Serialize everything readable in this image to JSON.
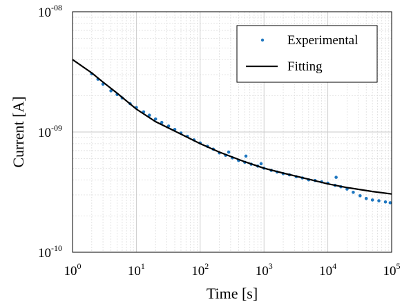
{
  "chart_data": {
    "type": "scatter",
    "title": "",
    "xlabel": "Time [s]",
    "ylabel": "Current [A]",
    "xscale": "log",
    "yscale": "log",
    "xlim": [
      1,
      100000
    ],
    "ylim": [
      1e-10,
      1e-08
    ],
    "grid": true,
    "legend_position": "top-right",
    "x_ticks": [
      {
        "base": "10",
        "exp": "0",
        "value": 1
      },
      {
        "base": "10",
        "exp": "1",
        "value": 10
      },
      {
        "base": "10",
        "exp": "2",
        "value": 100
      },
      {
        "base": "10",
        "exp": "3",
        "value": 1000
      },
      {
        "base": "10",
        "exp": "4",
        "value": 10000
      },
      {
        "base": "10",
        "exp": "5",
        "value": 100000
      }
    ],
    "y_ticks": [
      {
        "base": "10",
        "exp": "-10",
        "value": 1e-10
      },
      {
        "base": "10",
        "exp": "-09",
        "value": 1e-09
      },
      {
        "base": "10",
        "exp": "-08",
        "value": 1e-08
      }
    ],
    "series": [
      {
        "name": "Experimental",
        "kind": "scatter",
        "color": "#1f77c0",
        "points": [
          [
            2.0,
            3.05e-09
          ],
          [
            2.5,
            2.75e-09
          ],
          [
            3.0,
            2.5e-09
          ],
          [
            4.0,
            2.2e-09
          ],
          [
            5.0,
            2.05e-09
          ],
          [
            6.0,
            1.92e-09
          ],
          [
            8.0,
            1.72e-09
          ],
          [
            10,
            1.6e-09
          ],
          [
            13,
            1.47e-09
          ],
          [
            16,
            1.38e-09
          ],
          [
            20,
            1.28e-09
          ],
          [
            25,
            1.2e-09
          ],
          [
            32,
            1.12e-09
          ],
          [
            40,
            1.05e-09
          ],
          [
            50,
            9.8e-10
          ],
          [
            63,
            9.2e-10
          ],
          [
            80,
            8.6e-10
          ],
          [
            100,
            8.1e-10
          ],
          [
            130,
            7.6e-10
          ],
          [
            160,
            7.2e-10
          ],
          [
            200,
            6.7e-10
          ],
          [
            250,
            6.4e-10
          ],
          [
            280,
            6.8e-10
          ],
          [
            320,
            6.1e-10
          ],
          [
            400,
            5.8e-10
          ],
          [
            500,
            5.6e-10
          ],
          [
            520,
            6.3e-10
          ],
          [
            630,
            5.4e-10
          ],
          [
            800,
            5.2e-10
          ],
          [
            900,
            5.45e-10
          ],
          [
            1000,
            5e-10
          ],
          [
            1300,
            4.8e-10
          ],
          [
            1600,
            4.65e-10
          ],
          [
            2000,
            4.5e-10
          ],
          [
            2500,
            4.4e-10
          ],
          [
            3200,
            4.25e-10
          ],
          [
            4000,
            4.15e-10
          ],
          [
            5000,
            4e-10
          ],
          [
            6300,
            3.95e-10
          ],
          [
            8000,
            3.85e-10
          ],
          [
            10000,
            3.75e-10
          ],
          [
            13000,
            3.6e-10
          ],
          [
            13500,
            4.2e-10
          ],
          [
            16000,
            3.5e-10
          ],
          [
            20000,
            3.35e-10
          ],
          [
            25000,
            3.15e-10
          ],
          [
            32000,
            2.95e-10
          ],
          [
            40000,
            2.8e-10
          ],
          [
            50000,
            2.72e-10
          ],
          [
            63000,
            2.68e-10
          ],
          [
            80000,
            2.62e-10
          ],
          [
            95000,
            2.58e-10
          ]
        ]
      },
      {
        "name": "Fitting",
        "kind": "line",
        "color": "#000000",
        "points": [
          [
            1,
            4e-09
          ],
          [
            2,
            3.1e-09
          ],
          [
            3,
            2.6e-09
          ],
          [
            5,
            2.1e-09
          ],
          [
            10,
            1.55e-09
          ],
          [
            20,
            1.22e-09
          ],
          [
            50,
            9.6e-10
          ],
          [
            100,
            8e-10
          ],
          [
            200,
            6.8e-10
          ],
          [
            500,
            5.65e-10
          ],
          [
            1000,
            5e-10
          ],
          [
            2000,
            4.55e-10
          ],
          [
            5000,
            4.05e-10
          ],
          [
            10000,
            3.7e-10
          ],
          [
            20000,
            3.45e-10
          ],
          [
            50000,
            3.2e-10
          ],
          [
            100000,
            3.05e-10
          ]
        ]
      }
    ]
  }
}
